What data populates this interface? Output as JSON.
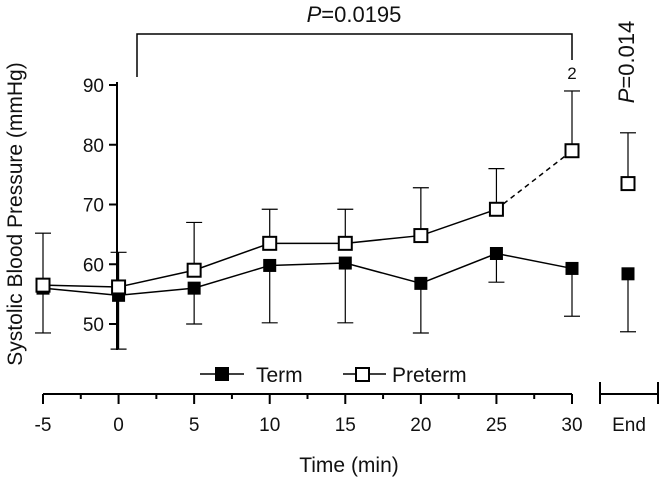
{
  "chart_data": {
    "type": "line",
    "title": "",
    "xlabel": "Time (min)",
    "ylabel": "Systolic Blood Pressure (mmHg)",
    "ylim": [
      45,
      92
    ],
    "xlim": [
      -5,
      30
    ],
    "yticks": [
      50,
      60,
      70,
      80,
      90
    ],
    "xtick_labels": [
      "-5",
      "0",
      "5",
      "10",
      "15",
      "20",
      "25",
      "30"
    ],
    "end_label": "End",
    "x": [
      -5,
      0,
      5,
      10,
      15,
      20,
      25,
      30
    ],
    "series": [
      {
        "name": "Term",
        "marker": "filled-square",
        "color": "#000000",
        "values": [
          56,
          54.8,
          56,
          59.8,
          60.2,
          56.8,
          61.8,
          59.3
        ],
        "err_upper": [
          null,
          62,
          null,
          null,
          null,
          null,
          null,
          null
        ],
        "err_lower": [
          48.5,
          45.8,
          50,
          50.2,
          50.2,
          48.5,
          57,
          51.3
        ],
        "end_value": 58.4,
        "end_err_lower": 48.7
      },
      {
        "name": "Preterm",
        "marker": "open-square",
        "color": "#000000",
        "values": [
          56.5,
          56.2,
          59,
          63.5,
          63.5,
          64.8,
          69.2,
          79
        ],
        "err_upper": [
          65.2,
          null,
          67,
          69.2,
          69.2,
          72.8,
          76,
          89
        ],
        "err_lower": [
          null,
          null,
          null,
          null,
          null,
          null,
          null,
          null
        ],
        "dashed_last_segment": true,
        "end_value": 73.5,
        "end_err_upper": 82
      }
    ],
    "annotations": {
      "bracket_text_italic": "P",
      "bracket_text_rest": "=0.0195",
      "bracket_from": 0,
      "bracket_to": 30,
      "end_text_italic": "P",
      "end_text_rest": "=0.014",
      "point_note": "2"
    },
    "legend": {
      "placement": "bottom-center",
      "entries": [
        "Term",
        "Preterm"
      ]
    },
    "grid": false
  }
}
